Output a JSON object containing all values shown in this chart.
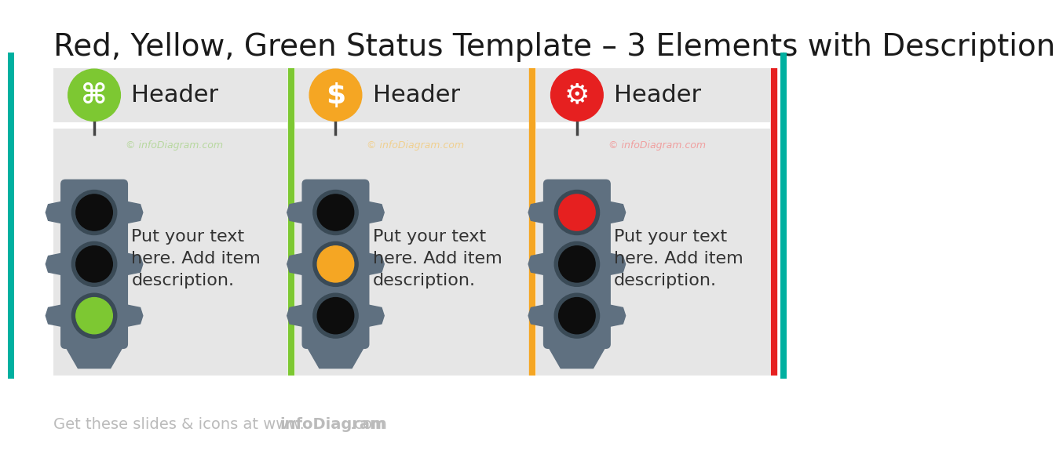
{
  "title": "Red, Yellow, Green Status Template – 3 Elements with Description",
  "title_fontsize": 28,
  "title_color": "#1a1a1a",
  "bg_color": "#ffffff",
  "footer_color": "#bbbbbb",
  "accent_bar_color": "#00b0a0",
  "elements": [
    {
      "icon_color": "#7dc832",
      "header": "Header",
      "description": "Put your text\nhere. Add item\ndescription.",
      "active_light": "green",
      "active_color": "#7dc832",
      "border_color": "#7dc832",
      "watermark_color": "#b8d8a0"
    },
    {
      "icon_color": "#f5a623",
      "header": "Header",
      "description": "Put your text\nhere. Add item\ndescription.",
      "active_light": "yellow",
      "active_color": "#f5a623",
      "border_color": "#f5a623",
      "watermark_color": "#f0d090"
    },
    {
      "icon_color": "#e62020",
      "header": "Header",
      "description": "Put your text\nhere. Add item\ndescription.",
      "active_light": "red",
      "active_color": "#e62020",
      "border_color": "#e62020",
      "watermark_color": "#f0a0a0"
    }
  ],
  "box_bg": "#e6e6e6",
  "traffic_body_color": "#5f7080",
  "traffic_dark": "#3a4a56",
  "traffic_light_off": "#0d0d0d",
  "stem_color": "#444444"
}
